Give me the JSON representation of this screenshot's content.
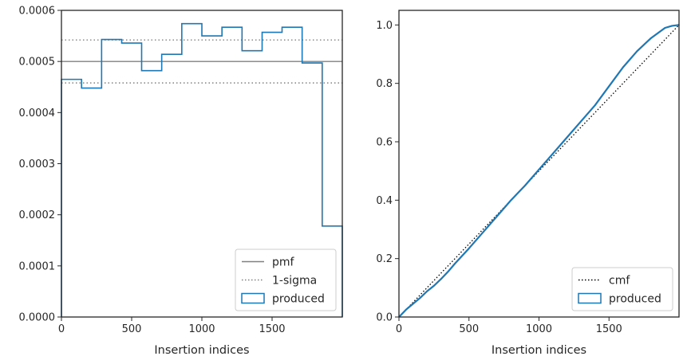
{
  "chart_data": [
    {
      "type": "histogram",
      "xlabel": "Insertion indices",
      "ylabel": "",
      "xlim": [
        0,
        2000
      ],
      "ylim": [
        0,
        0.0006
      ],
      "xticks": [
        0,
        500,
        1000,
        1500
      ],
      "xtick_labels": [
        "0",
        "500",
        "1000",
        "1500"
      ],
      "yticks": [
        0,
        0.0001,
        0.0002,
        0.0003,
        0.0004,
        0.0005,
        0.0006
      ],
      "ytick_labels": [
        "0.0000",
        "0.0001",
        "0.0002",
        "0.0003",
        "0.0004",
        "0.0005",
        "0.0006"
      ],
      "grid": false,
      "legend_position": "bottom-right",
      "reference_lines": {
        "pmf": 0.0005,
        "sigma_low": 0.000458,
        "sigma_high": 0.000542
      },
      "bin_edges": [
        0,
        143,
        286,
        429,
        571,
        714,
        857,
        1000,
        1143,
        1286,
        1429,
        1571,
        1714,
        1857,
        2000
      ],
      "values": [
        0.000465,
        0.000448,
        0.000543,
        0.000536,
        0.000482,
        0.000514,
        0.000574,
        0.00055,
        0.000567,
        0.000521,
        0.000557,
        0.000567,
        0.000497,
        0.000178
      ],
      "legend": [
        {
          "label": "pmf",
          "style": "solid",
          "color": "#808080"
        },
        {
          "label": "1-sigma",
          "style": "dotted",
          "color": "#808080"
        },
        {
          "label": "produced",
          "style": "box",
          "color": "#1f77b4"
        }
      ]
    },
    {
      "type": "line",
      "xlabel": "Insertion indices",
      "ylabel": "",
      "xlim": [
        0,
        2000
      ],
      "ylim": [
        0,
        1.05
      ],
      "xticks": [
        0,
        500,
        1000,
        1500
      ],
      "xtick_labels": [
        "0",
        "500",
        "1000",
        "1500"
      ],
      "yticks": [
        0,
        0.2,
        0.4,
        0.6,
        0.8,
        1.0
      ],
      "ytick_labels": [
        "0.0",
        "0.2",
        "0.4",
        "0.6",
        "0.8",
        "1.0"
      ],
      "grid": false,
      "legend_position": "bottom-right",
      "series": [
        {
          "name": "cmf",
          "style": "dotted",
          "color": "#000000",
          "x": [
            0,
            2000
          ],
          "y": [
            0,
            1.0
          ]
        },
        {
          "name": "produced",
          "style": "step",
          "color": "#1f77b4",
          "x": [
            0,
            50,
            100,
            150,
            200,
            250,
            300,
            350,
            400,
            500,
            600,
            700,
            800,
            900,
            1000,
            1100,
            1200,
            1300,
            1400,
            1500,
            1600,
            1700,
            1800,
            1900,
            1950,
            2000
          ],
          "y": [
            0,
            0.025,
            0.045,
            0.065,
            0.088,
            0.107,
            0.13,
            0.155,
            0.183,
            0.235,
            0.29,
            0.345,
            0.4,
            0.45,
            0.505,
            0.56,
            0.615,
            0.67,
            0.725,
            0.79,
            0.855,
            0.91,
            0.955,
            0.99,
            0.997,
            1.0
          ]
        }
      ],
      "legend": [
        {
          "label": "cmf",
          "style": "dotted",
          "color": "#000000"
        },
        {
          "label": "produced",
          "style": "box",
          "color": "#1f77b4"
        }
      ]
    }
  ]
}
